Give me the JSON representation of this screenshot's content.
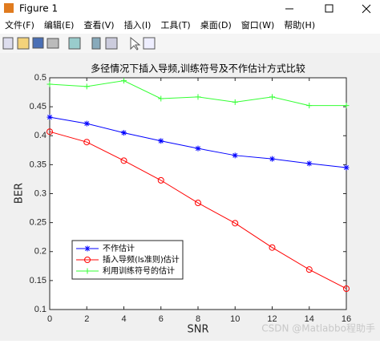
{
  "window": {
    "title": "Figure 1",
    "menu": [
      "文件(F)",
      "编辑(E)",
      "查看(V)",
      "插入(I)",
      "工具(T)",
      "桌面(D)",
      "窗口(W)",
      "帮助(H)"
    ]
  },
  "watermark": "CSDN @Matlabbo程助手",
  "chart_data": {
    "type": "line",
    "title": "多径情况下插入导频,训练符号及不作估计方式比较",
    "x_label": "SNR",
    "y_label": "BER",
    "x": [
      0,
      2,
      4,
      6,
      8,
      10,
      12,
      14,
      16
    ],
    "series": [
      {
        "name": "不作估计",
        "color": "#0000ff",
        "marker": "asterisk",
        "values": [
          0.432,
          0.421,
          0.405,
          0.391,
          0.378,
          0.366,
          0.36,
          0.352,
          0.345
        ]
      },
      {
        "name": "插入导频(ls准则)估计",
        "color": "#ff0000",
        "marker": "circle",
        "values": [
          0.407,
          0.389,
          0.357,
          0.323,
          0.284,
          0.249,
          0.207,
          0.169,
          0.136
        ]
      },
      {
        "name": "利用训练符号的估计",
        "color": "#33ff33",
        "marker": "plus",
        "values": [
          0.489,
          0.485,
          0.495,
          0.464,
          0.467,
          0.458,
          0.467,
          0.452,
          0.452
        ]
      }
    ],
    "xlim": [
      0,
      16
    ],
    "ylim": [
      0.1,
      0.5
    ],
    "xticks": [
      0,
      2,
      4,
      6,
      8,
      10,
      12,
      14,
      16
    ],
    "yticks": [
      0.1,
      0.15,
      0.2,
      0.25,
      0.3,
      0.35,
      0.4,
      0.45,
      0.5
    ],
    "grid": false,
    "legend": "southwest"
  }
}
